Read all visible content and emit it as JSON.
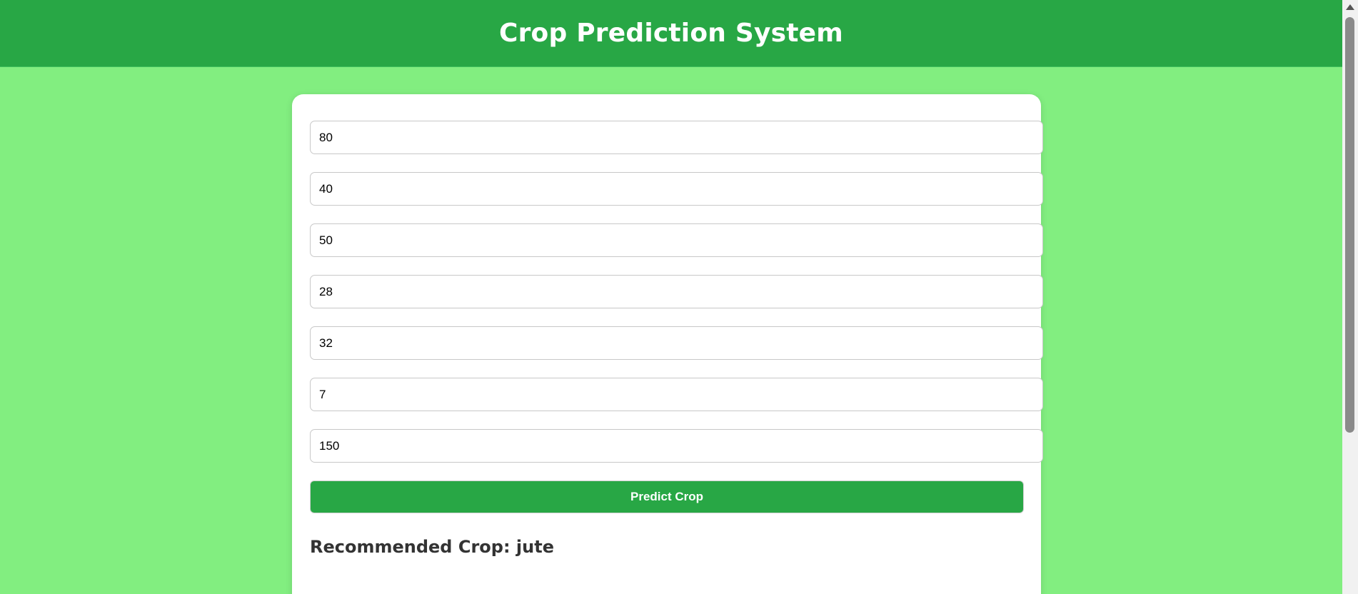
{
  "header": {
    "title": "Crop Prediction System"
  },
  "form": {
    "fields": [
      {
        "value": "80"
      },
      {
        "value": "40"
      },
      {
        "value": "50"
      },
      {
        "value": "28"
      },
      {
        "value": "32"
      },
      {
        "value": "7"
      },
      {
        "value": "150"
      }
    ],
    "submit_label": "Predict Crop"
  },
  "result": {
    "text": "Recommended Crop: jute"
  },
  "colors": {
    "page_background": "#82ee80",
    "header_background": "#28a745",
    "button_background": "#28a745",
    "card_background": "#ffffff"
  }
}
